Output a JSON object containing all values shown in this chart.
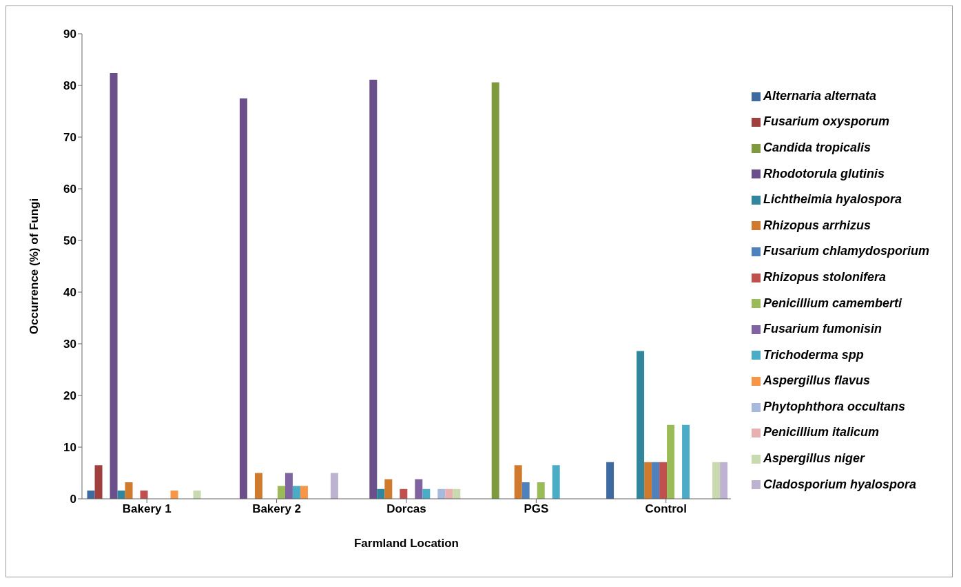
{
  "chart_data": {
    "type": "bar",
    "xlabel": "Farmland Location",
    "ylabel": "Occurrence (%) of Fungi",
    "categories": [
      "Bakery 1",
      "Bakery 2",
      "Dorcas",
      "PGS",
      "Control"
    ],
    "series": [
      {
        "name": "Alternaria alternata",
        "color": "#3d6aa0",
        "values": [
          1.6,
          0,
          0,
          0,
          7.1
        ]
      },
      {
        "name": "Fusarium oxysporum",
        "color": "#a0403e",
        "values": [
          6.5,
          0,
          0,
          0,
          0
        ]
      },
      {
        "name": "Candida tropicalis",
        "color": "#7f9a3e",
        "values": [
          0,
          0,
          0,
          80.6,
          0
        ]
      },
      {
        "name": "Rhodotorula glutinis",
        "color": "#6a4f8a",
        "values": [
          82.4,
          77.5,
          81.1,
          0,
          0
        ]
      },
      {
        "name": "Lichtheimia hyalospora",
        "color": "#31859c",
        "values": [
          1.6,
          0,
          1.9,
          0,
          28.6
        ]
      },
      {
        "name": "Rhizopus arrhizus",
        "color": "#d07a2e",
        "values": [
          3.2,
          5,
          3.8,
          6.5,
          7.1
        ]
      },
      {
        "name": "Fusarium chlamydosporium",
        "color": "#4f81bd",
        "values": [
          0,
          0,
          0,
          3.2,
          7.1
        ]
      },
      {
        "name": "Rhizopus stolonifera",
        "color": "#c0504d",
        "values": [
          1.6,
          0,
          1.9,
          0,
          7.1
        ]
      },
      {
        "name": "Penicillium camemberti",
        "color": "#9bbb59",
        "values": [
          0,
          2.5,
          0,
          3.2,
          14.3
        ]
      },
      {
        "name": "Fusarium fumonisin",
        "color": "#8064a2",
        "values": [
          0,
          5,
          3.8,
          0,
          0
        ]
      },
      {
        "name": "Trichoderma spp",
        "color": "#4bacc6",
        "values": [
          0,
          2.5,
          1.9,
          6.5,
          14.3
        ]
      },
      {
        "name": "Aspergillus flavus",
        "color": "#f79646",
        "values": [
          1.6,
          2.5,
          0,
          0,
          0
        ]
      },
      {
        "name": "Phytophthora occultans",
        "color": "#a7b9dc",
        "values": [
          0,
          0,
          1.9,
          0,
          0
        ]
      },
      {
        "name": "Penicillium italicum",
        "color": "#e6b1b0",
        "values": [
          0,
          0,
          1.9,
          0,
          0
        ]
      },
      {
        "name": "Aspergillus niger",
        "color": "#c9dab0",
        "values": [
          1.6,
          0,
          1.9,
          0,
          7.1
        ]
      },
      {
        "name": "Cladosporium hyalospora",
        "color": "#bdb3d1",
        "values": [
          0,
          5,
          0,
          0,
          7.1
        ]
      }
    ],
    "ylim": [
      0,
      90
    ],
    "yticks": [
      0,
      10,
      20,
      30,
      40,
      50,
      60,
      70,
      80,
      90
    ],
    "grid": false,
    "legend": "right"
  }
}
